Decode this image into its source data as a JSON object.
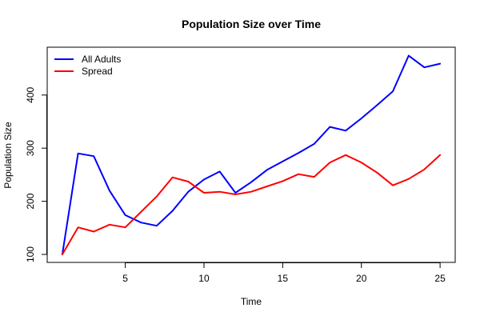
{
  "chart_data": {
    "type": "line",
    "title": "Population Size over Time",
    "xlabel": "Time",
    "ylabel": "Population Size",
    "xlim": [
      1,
      25
    ],
    "ylim": [
      100,
      475
    ],
    "x_ticks": [
      5,
      10,
      15,
      20,
      25
    ],
    "y_ticks": [
      100,
      200,
      300,
      400
    ],
    "x": [
      1,
      2,
      3,
      4,
      5,
      6,
      7,
      8,
      9,
      10,
      11,
      12,
      13,
      14,
      15,
      16,
      17,
      18,
      19,
      20,
      21,
      22,
      23,
      24,
      25
    ],
    "series": [
      {
        "name": "All Adults",
        "color": "#0000ff",
        "values": [
          100,
          290,
          285,
          220,
          174,
          160,
          154,
          182,
          218,
          241,
          256,
          216,
          236,
          259,
          275,
          291,
          308,
          340,
          333,
          356,
          381,
          407,
          474,
          452,
          459
        ]
      },
      {
        "name": "Spread",
        "color": "#ff0000",
        "values": [
          100,
          151,
          143,
          156,
          151,
          180,
          209,
          245,
          237,
          216,
          218,
          213,
          218,
          228,
          238,
          251,
          246,
          273,
          287,
          273,
          254,
          230,
          242,
          260,
          287
        ]
      }
    ],
    "legend": "top-left",
    "grid": false
  }
}
